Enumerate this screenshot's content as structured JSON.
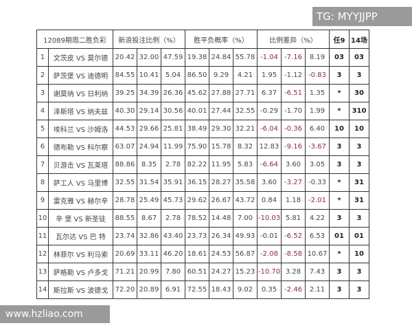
{
  "watermarks": {
    "top": "TG: MYYJJPP",
    "bottom": "www.hzliao.com"
  },
  "header": {
    "title": "12089期周二胜负彩",
    "sina": "新浪投注比例（%）",
    "prob": "胜平负概率（%）",
    "diff": "比例差异（%）",
    "ren9": "任9",
    "c14": "14场"
  },
  "colors": {
    "negative": "#8b2a3a"
  },
  "rows": [
    {
      "n": "1",
      "home": "文茨皮",
      "vs": "VS",
      "away": "莫尔德",
      "s": [
        "20.42",
        "32.00",
        "47.59"
      ],
      "p": [
        "19.38",
        "24.84",
        "55.78"
      ],
      "d": [
        "-1.04",
        "-7.16",
        "8.19"
      ],
      "r": [
        1,
        1,
        0
      ],
      "r9": "03",
      "c14": "03"
    },
    {
      "n": "2",
      "home": "萨茨堡",
      "vs": "VS",
      "away": "迪德明",
      "s": [
        "84.55",
        "10.41",
        "5.04"
      ],
      "p": [
        "86.50",
        "9.29",
        "4.21"
      ],
      "d": [
        "1.95",
        "-1.12",
        "-0.83"
      ],
      "r": [
        0,
        0,
        1
      ],
      "r9": "3",
      "c14": "3"
    },
    {
      "n": "3",
      "home": "谢莫纳",
      "vs": "VS",
      "away": "日利纳",
      "s": [
        "39.25",
        "34.39",
        "26.36"
      ],
      "p": [
        "45.62",
        "27.88",
        "27.71"
      ],
      "d": [
        "6.37",
        "-6.51",
        "1.35"
      ],
      "r": [
        0,
        1,
        0
      ],
      "r9": "*",
      "c14": "30"
    },
    {
      "n": "4",
      "home": "泽斯塔",
      "vs": "VS",
      "away": "纳夫兹",
      "s": [
        "40.30",
        "29.14",
        "30.56"
      ],
      "p": [
        "40.01",
        "27.44",
        "32.55"
      ],
      "d": [
        "-0.29",
        "-1.70",
        "1.99"
      ],
      "r": [
        0,
        0,
        0
      ],
      "r9": "*",
      "c14": "310"
    },
    {
      "n": "5",
      "home": "埃科兰",
      "vs": "VS",
      "away": "沙姆洛",
      "s": [
        "44.53",
        "29.66",
        "25.81"
      ],
      "p": [
        "38.49",
        "29.30",
        "32.21"
      ],
      "d": [
        "-6.04",
        "-0.36",
        "6.40"
      ],
      "r": [
        1,
        1,
        0
      ],
      "r9": "10",
      "c14": "10"
    },
    {
      "n": "6",
      "home": "德布勒",
      "vs": "VS",
      "away": "科尔察",
      "s": [
        "63.07",
        "24.94",
        "11.99"
      ],
      "p": [
        "75.90",
        "15.78",
        "8.32"
      ],
      "d": [
        "12.83",
        "-9.16",
        "-3.67"
      ],
      "r": [
        0,
        1,
        1
      ],
      "r9": "3",
      "c14": "3"
    },
    {
      "n": "7",
      "home": "贝游击",
      "vs": "VS",
      "away": "瓦莱塔",
      "s": [
        "88.86",
        "8.35",
        "2.78"
      ],
      "p": [
        "82.22",
        "11.95",
        "5.83"
      ],
      "d": [
        "-6.64",
        "3.60",
        "3.05"
      ],
      "r": [
        1,
        0,
        0
      ],
      "r9": "3",
      "c14": "3"
    },
    {
      "n": "8",
      "home": "萨工人",
      "vs": "VS",
      "away": "马里博",
      "s": [
        "32.55",
        "31.54",
        "35.91"
      ],
      "p": [
        "36.15",
        "28.27",
        "35.58"
      ],
      "d": [
        "3.60",
        "-3.27",
        "-0.33"
      ],
      "r": [
        0,
        1,
        0
      ],
      "r9": "*",
      "c14": "31"
    },
    {
      "n": "9",
      "home": "雷克雅",
      "vs": "VS",
      "away": "赫尔辛",
      "s": [
        "28.78",
        "25.49",
        "45.73"
      ],
      "p": [
        "29.62",
        "26.67",
        "43.72"
      ],
      "d": [
        "0.84",
        "1.18",
        "-2.01"
      ],
      "r": [
        0,
        0,
        1
      ],
      "r9": "*",
      "c14": "31"
    },
    {
      "n": "10",
      "home": "辛 堡",
      "vs": "VS",
      "away": "新圣徒",
      "s": [
        "88.55",
        "8.67",
        "2.78"
      ],
      "p": [
        "78.52",
        "14.48",
        "7.00"
      ],
      "d": [
        "-10.03",
        "5.81",
        "4.22"
      ],
      "r": [
        1,
        0,
        0
      ],
      "r9": "3",
      "c14": "3"
    },
    {
      "n": "11",
      "home": "瓦尔达",
      "vs": "VS",
      "away": "巴 特",
      "s": [
        "23.74",
        "32.86",
        "43.40"
      ],
      "p": [
        "23.73",
        "26.34",
        "49.93"
      ],
      "d": [
        "-0.01",
        "-6.52",
        "6.53"
      ],
      "r": [
        0,
        1,
        0
      ],
      "r9": "01",
      "c14": "01"
    },
    {
      "n": "12",
      "home": "林菲尔",
      "vs": "VS",
      "away": "利马索",
      "s": [
        "20.69",
        "33.11",
        "46.20"
      ],
      "p": [
        "18.61",
        "24.53",
        "56.87"
      ],
      "d": [
        "-2.08",
        "-8.58",
        "10.67"
      ],
      "r": [
        1,
        1,
        0
      ],
      "r9": "*",
      "c14": "10"
    },
    {
      "n": "13",
      "home": "萨格勒",
      "vs": "VS",
      "away": "卢多戈",
      "s": [
        "71.21",
        "20.99",
        "7.80"
      ],
      "p": [
        "60.51",
        "24.27",
        "15.23"
      ],
      "d": [
        "-10.70",
        "3.28",
        "7.43"
      ],
      "r": [
        1,
        0,
        0
      ],
      "r9": "3",
      "c14": "3"
    },
    {
      "n": "14",
      "home": "斯拉斯",
      "vs": "VS",
      "away": "波德戈",
      "s": [
        "72.20",
        "20.89",
        "6.91"
      ],
      "p": [
        "72.55",
        "18.43",
        "9.02"
      ],
      "d": [
        "0.35",
        "-2.46",
        "2.11"
      ],
      "r": [
        0,
        1,
        0
      ],
      "r9": "3",
      "c14": "3"
    }
  ]
}
